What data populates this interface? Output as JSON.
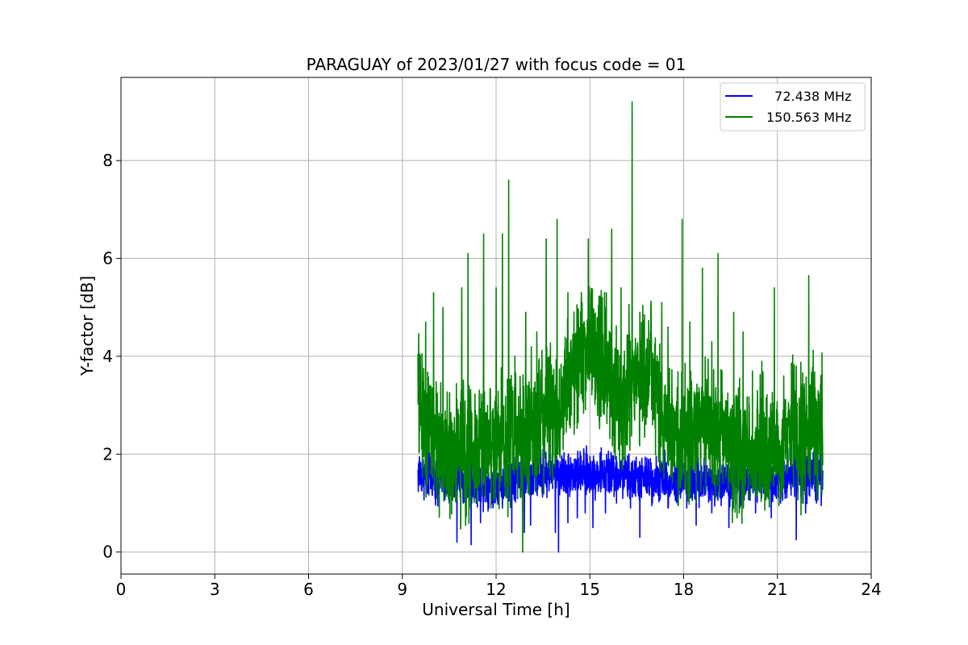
{
  "chart_data": {
    "type": "line",
    "title": "PARAGUAY of 2023/01/27 with focus code = 01",
    "xlabel": "Universal Time [h]",
    "ylabel": "Y-factor [dB]",
    "xlim": [
      0,
      24
    ],
    "ylim": [
      -0.45,
      9.7
    ],
    "xticks": [
      0,
      3,
      6,
      9,
      12,
      15,
      18,
      21,
      24
    ],
    "yticks": [
      0,
      2,
      4,
      6,
      8
    ],
    "grid": true,
    "legend_position": "top-right",
    "series": [
      {
        "name": "72.438 MHz",
        "legend_label": "  72.438 MHz",
        "color": "#0000ff",
        "x_range": [
          9.5,
          22.45
        ],
        "base": [
          [
            9.5,
            1.6
          ],
          [
            10.5,
            1.5
          ],
          [
            11.5,
            1.4
          ],
          [
            12.5,
            1.5
          ],
          [
            13.5,
            1.6
          ],
          [
            14.5,
            1.6
          ],
          [
            15.5,
            1.6
          ],
          [
            16.5,
            1.5
          ],
          [
            17.5,
            1.5
          ],
          [
            18.5,
            1.4
          ],
          [
            19.5,
            1.5
          ],
          [
            20.5,
            1.5
          ],
          [
            21.5,
            1.6
          ],
          [
            22.45,
            1.5
          ]
        ],
        "peaks": [
          [
            9.55,
            1.95
          ],
          [
            9.8,
            1.2
          ],
          [
            10.05,
            1.1
          ],
          [
            10.5,
            1.0
          ],
          [
            10.75,
            0.2
          ],
          [
            10.95,
            1.0
          ],
          [
            11.2,
            0.15
          ],
          [
            11.5,
            0.6
          ],
          [
            11.9,
            0.9
          ],
          [
            12.2,
            0.9
          ],
          [
            12.5,
            0.4
          ],
          [
            12.9,
            0.4
          ],
          [
            13.1,
            0.55
          ],
          [
            13.5,
            2.1
          ],
          [
            13.9,
            0.4
          ],
          [
            14.0,
            0.0
          ],
          [
            14.3,
            0.6
          ],
          [
            14.6,
            0.7
          ],
          [
            14.85,
            0.8
          ],
          [
            15.1,
            0.5
          ],
          [
            15.5,
            0.8
          ],
          [
            15.85,
            1.0
          ],
          [
            16.3,
            0.9
          ],
          [
            16.6,
            0.3
          ],
          [
            17.0,
            1.0
          ],
          [
            17.5,
            0.9
          ],
          [
            18.1,
            0.9
          ],
          [
            18.4,
            0.55
          ],
          [
            18.9,
            0.8
          ],
          [
            19.2,
            0.95
          ],
          [
            19.45,
            0.5
          ],
          [
            19.8,
            0.9
          ],
          [
            20.3,
            0.8
          ],
          [
            20.8,
            0.7
          ],
          [
            21.1,
            1.0
          ],
          [
            21.6,
            0.25
          ],
          [
            21.9,
            0.8
          ],
          [
            22.25,
            1.0
          ],
          [
            22.4,
            0.95
          ]
        ]
      },
      {
        "name": "150.563 MHz",
        "legend_label": "150.563 MHz",
        "color": "#008000",
        "x_range": [
          9.5,
          22.45
        ],
        "base": [
          [
            9.5,
            3.1
          ],
          [
            10.0,
            2.3
          ],
          [
            10.5,
            2.0
          ],
          [
            11.0,
            2.0
          ],
          [
            11.5,
            2.2
          ],
          [
            12.0,
            2.3
          ],
          [
            12.5,
            2.3
          ],
          [
            13.0,
            2.5
          ],
          [
            13.5,
            2.9
          ],
          [
            14.0,
            2.9
          ],
          [
            14.5,
            3.9
          ],
          [
            15.0,
            4.2
          ],
          [
            15.5,
            3.7
          ],
          [
            16.0,
            3.0
          ],
          [
            16.5,
            3.7
          ],
          [
            17.0,
            3.5
          ],
          [
            17.5,
            2.4
          ],
          [
            18.0,
            2.2
          ],
          [
            18.5,
            2.6
          ],
          [
            19.0,
            2.5
          ],
          [
            19.5,
            2.3
          ],
          [
            20.0,
            2.1
          ],
          [
            20.5,
            2.0
          ],
          [
            21.0,
            2.2
          ],
          [
            21.5,
            2.5
          ],
          [
            22.0,
            2.4
          ],
          [
            22.45,
            2.7
          ]
        ],
        "peaks": [
          [
            9.55,
            4.05
          ],
          [
            9.75,
            4.7
          ],
          [
            10.0,
            5.3
          ],
          [
            10.3,
            5.0
          ],
          [
            10.9,
            5.4
          ],
          [
            11.1,
            6.1
          ],
          [
            11.6,
            6.5
          ],
          [
            12.0,
            5.4
          ],
          [
            12.2,
            6.5
          ],
          [
            12.4,
            7.6
          ],
          [
            12.6,
            4.0
          ],
          [
            12.85,
            0.0
          ],
          [
            12.95,
            4.9
          ],
          [
            13.3,
            4.5
          ],
          [
            13.6,
            6.4
          ],
          [
            13.95,
            6.8
          ],
          [
            14.3,
            5.3
          ],
          [
            14.6,
            5.0
          ],
          [
            14.75,
            5.1
          ],
          [
            14.95,
            6.4
          ],
          [
            15.4,
            5.2
          ],
          [
            15.7,
            6.6
          ],
          [
            16.0,
            5.4
          ],
          [
            16.35,
            9.2
          ],
          [
            16.6,
            4.9
          ],
          [
            16.95,
            5.0
          ],
          [
            17.3,
            5.1
          ],
          [
            17.5,
            4.6
          ],
          [
            17.95,
            6.8
          ],
          [
            18.2,
            4.7
          ],
          [
            18.6,
            5.8
          ],
          [
            18.9,
            4.3
          ],
          [
            19.1,
            6.1
          ],
          [
            19.6,
            4.9
          ],
          [
            19.9,
            4.5
          ],
          [
            20.2,
            3.7
          ],
          [
            20.5,
            3.9
          ],
          [
            20.9,
            5.4
          ],
          [
            21.2,
            3.6
          ],
          [
            21.6,
            3.8
          ],
          [
            22.0,
            5.65
          ],
          [
            22.3,
            3.3
          ]
        ]
      }
    ]
  }
}
